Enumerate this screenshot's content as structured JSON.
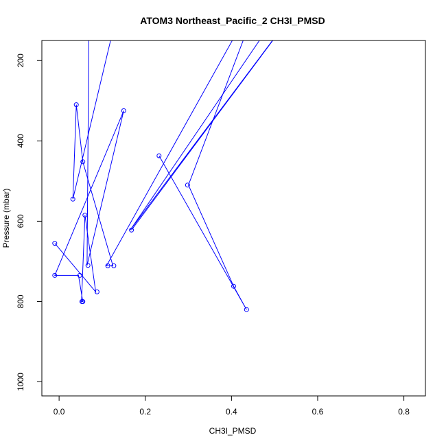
{
  "chart_data": {
    "type": "line",
    "title": "ATOM3 Northeast_Pacific_2 CH3I_PMSD",
    "xlabel": "CH3I_PMSD",
    "ylabel": "Pressure (mbar)",
    "xlim": [
      -0.04,
      0.85
    ],
    "ylim": [
      1035,
      150
    ],
    "y_reversed": true,
    "xticks": [
      0.0,
      0.2,
      0.4,
      0.6,
      0.8
    ],
    "yticks": [
      200,
      400,
      600,
      800,
      1000
    ],
    "grid": false,
    "legend": "none",
    "color": "#0000ff",
    "series": [
      {
        "points": [
          [
            0.135,
            80
          ],
          [
            0.032,
            545
          ],
          [
            0.04,
            310
          ],
          [
            0.055,
            452
          ],
          [
            0.125,
            711
          ],
          [
            0.11,
            711
          ],
          [
            0.48,
            0
          ],
          [
            0.3,
            510
          ],
          [
            0.405,
            762
          ],
          [
            0.435,
            820
          ],
          [
            0.232,
            437
          ],
          [
            0.232,
            437
          ]
        ]
      },
      {
        "points": [
          [
            0.07,
            0
          ],
          [
            0.065,
            710
          ],
          [
            0.15,
            325
          ],
          [
            -0.01,
            735
          ],
          [
            0.045,
            735
          ],
          [
            0.055,
            800
          ],
          [
            0.052,
            800
          ],
          [
            0.06,
            585
          ],
          [
            0.06,
            585
          ],
          [
            0.085,
            776
          ],
          [
            -0.01,
            655
          ]
        ]
      },
      {
        "points": [
          [
            0.168,
            622
          ],
          [
            0.6,
            0
          ],
          [
            0.165,
            622
          ],
          [
            0.56,
            0
          ]
        ]
      }
    ],
    "markers": [
      [
        0.04,
        310
      ],
      [
        0.15,
        325
      ],
      [
        0.232,
        437
      ],
      [
        0.055,
        452
      ],
      [
        0.298,
        510
      ],
      [
        0.032,
        545
      ],
      [
        0.06,
        585
      ],
      [
        0.168,
        622
      ],
      [
        -0.01,
        655
      ],
      [
        0.067,
        710
      ],
      [
        0.113,
        711
      ],
      [
        0.127,
        711
      ],
      [
        -0.01,
        735
      ],
      [
        0.048,
        735
      ],
      [
        0.405,
        762
      ],
      [
        0.088,
        776
      ],
      [
        0.053,
        800
      ],
      [
        0.055,
        800
      ],
      [
        0.435,
        820
      ]
    ]
  }
}
